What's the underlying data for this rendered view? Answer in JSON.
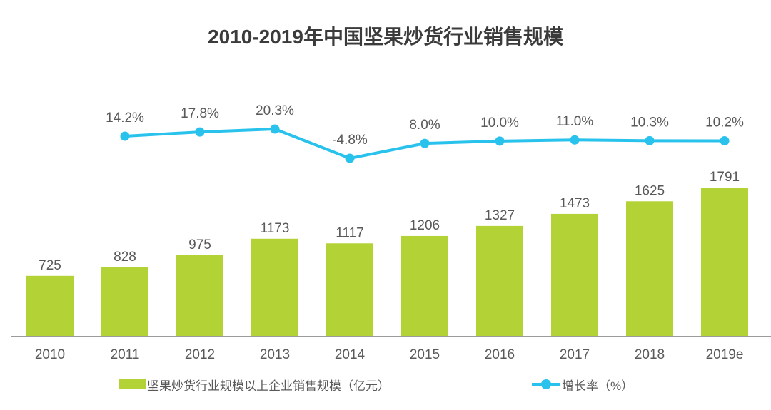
{
  "title": "2010-2019年中国坚果炒货行业销售规模",
  "chart_data": {
    "type": "combo",
    "title": "2010-2019年中国坚果炒货行业销售规模",
    "categories": [
      "2010",
      "2011",
      "2012",
      "2013",
      "2014",
      "2015",
      "2016",
      "2017",
      "2018",
      "2019e"
    ],
    "series": [
      {
        "name": "坚果炒货行业规模以上企业销售规模（亿元）",
        "type": "bar",
        "unit": "亿元",
        "values": [
          725,
          828,
          975,
          1173,
          1117,
          1206,
          1327,
          1473,
          1625,
          1791
        ]
      },
      {
        "name": "增长率（%）",
        "type": "line",
        "unit": "%",
        "values": [
          null,
          14.2,
          17.8,
          20.3,
          -4.8,
          8.0,
          10.0,
          11.0,
          10.3,
          10.2
        ]
      }
    ],
    "xlabel": "",
    "ylabel": "",
    "bar_axis_range": [
      0,
      1850
    ],
    "line_axis_range": [
      -10,
      25
    ],
    "grid": false,
    "value_labels": "above",
    "legend_position": "bottom",
    "colors": {
      "bar": "#b2d235",
      "line": "#29c2ec",
      "axis": "#9b9b9b",
      "label": "#595959",
      "title": "#3b3b3b"
    }
  }
}
